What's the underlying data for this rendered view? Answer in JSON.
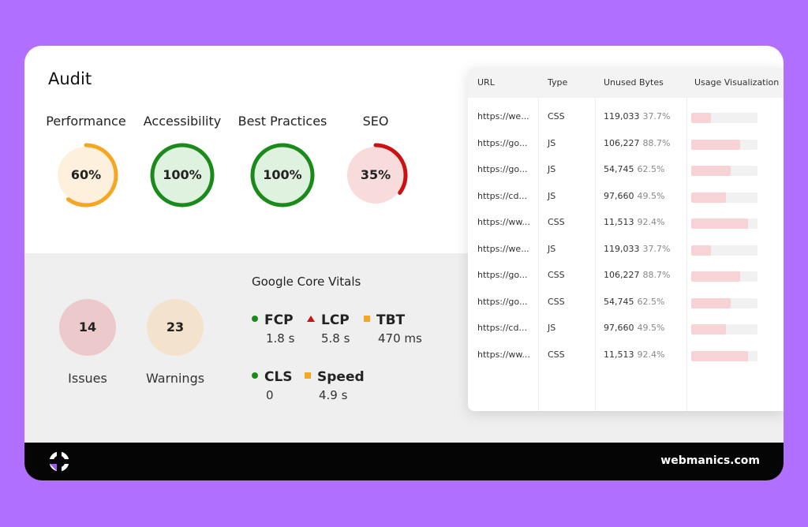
{
  "audit": {
    "title": "Audit",
    "gauges": [
      {
        "label": "Performance",
        "value": "60%",
        "percent": 60,
        "color": "#f5a623",
        "bg": "#fdf0dc"
      },
      {
        "label": "Accessibility",
        "value": "100%",
        "percent": 100,
        "color": "#1a8a1a",
        "bg": "#dff1df"
      },
      {
        "label": "Best Practices",
        "value": "100%",
        "percent": 100,
        "color": "#1a8a1a",
        "bg": "#dff1df"
      },
      {
        "label": "SEO",
        "value": "35%",
        "percent": 35,
        "color": "#cc1111",
        "bg": "#f8dcdc"
      }
    ]
  },
  "summary": {
    "issues": {
      "count": "14",
      "label": "Issues",
      "bg": "#ecc9cb"
    },
    "warnings": {
      "count": "23",
      "label": "Warnings",
      "bg": "#f3e3cc"
    }
  },
  "vitals": {
    "title": "Google Core Vitals",
    "items": [
      {
        "name": "FCP",
        "value": "1.8 s",
        "marker": "dot"
      },
      {
        "name": "LCP",
        "value": "5.8 s",
        "marker": "triangle"
      },
      {
        "name": "TBT",
        "value": "470 ms",
        "marker": "square"
      },
      {
        "name": "CLS",
        "value": "0",
        "marker": "dot"
      },
      {
        "name": "Speed",
        "value": "4.9 s",
        "marker": "square"
      }
    ]
  },
  "table": {
    "headers": [
      "URL",
      "Type",
      "Unused Bytes",
      "Usage Visualization"
    ],
    "rows": [
      {
        "url": "https://we...",
        "type": "CSS",
        "bytes": "119,033",
        "pct": "37.7%",
        "usage": 0.3
      },
      {
        "url": "https://go...",
        "type": "JS",
        "bytes": "106,227",
        "pct": "88.7%",
        "usage": 0.74
      },
      {
        "url": "https://go...",
        "type": "JS",
        "bytes": "54,745",
        "pct": "62.5%",
        "usage": 0.6
      },
      {
        "url": "https://cd...",
        "type": "JS",
        "bytes": "97,660",
        "pct": "49.5%",
        "usage": 0.52
      },
      {
        "url": "https://ww...",
        "type": "CSS",
        "bytes": "11,513",
        "pct": "92.4%",
        "usage": 0.86
      },
      {
        "url": "https://we...",
        "type": "JS",
        "bytes": "119,033",
        "pct": "37.7%",
        "usage": 0.3
      },
      {
        "url": "https://go...",
        "type": "CSS",
        "bytes": "106,227",
        "pct": "88.7%",
        "usage": 0.74
      },
      {
        "url": "https://go...",
        "type": "CSS",
        "bytes": "54,745",
        "pct": "62.5%",
        "usage": 0.6
      },
      {
        "url": "https://cd...",
        "type": "JS",
        "bytes": "97,660",
        "pct": "49.5%",
        "usage": 0.52
      },
      {
        "url": "https://ww...",
        "type": "CSS",
        "bytes": "11,513",
        "pct": "92.4%",
        "usage": 0.86
      }
    ]
  },
  "footer": {
    "logo_icon": "webmanics-logo-icon",
    "site": "webmanics.com"
  }
}
